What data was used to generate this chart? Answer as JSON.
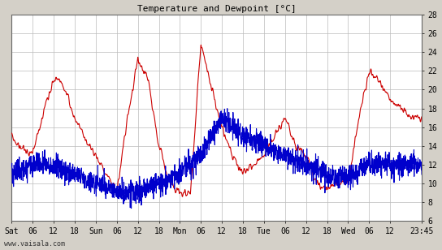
{
  "title": "Temperature and Dewpoint [°C]",
  "bg_color": "#d4d0c8",
  "plot_bg_color": "#ffffff",
  "grid_color": "#bbbbbb",
  "temp_color": "#cc0000",
  "dew_color": "#0000cc",
  "ylim": [
    6,
    28
  ],
  "yticks": [
    6,
    8,
    10,
    12,
    14,
    16,
    18,
    20,
    22,
    24,
    26,
    28
  ],
  "watermark": "www.vaisala.com",
  "x_tick_labels": [
    "Sat",
    "06",
    "12",
    "18",
    "Sun",
    "06",
    "12",
    "18",
    "Mon",
    "06",
    "12",
    "18",
    "Tue",
    "06",
    "12",
    "18",
    "Wed",
    "06",
    "12",
    "23:45"
  ],
  "x_tick_positions": [
    0,
    6,
    12,
    18,
    24,
    30,
    36,
    42,
    48,
    54,
    60,
    66,
    72,
    78,
    84,
    90,
    96,
    102,
    108,
    117
  ],
  "x_total": 117,
  "n_points": 2000
}
